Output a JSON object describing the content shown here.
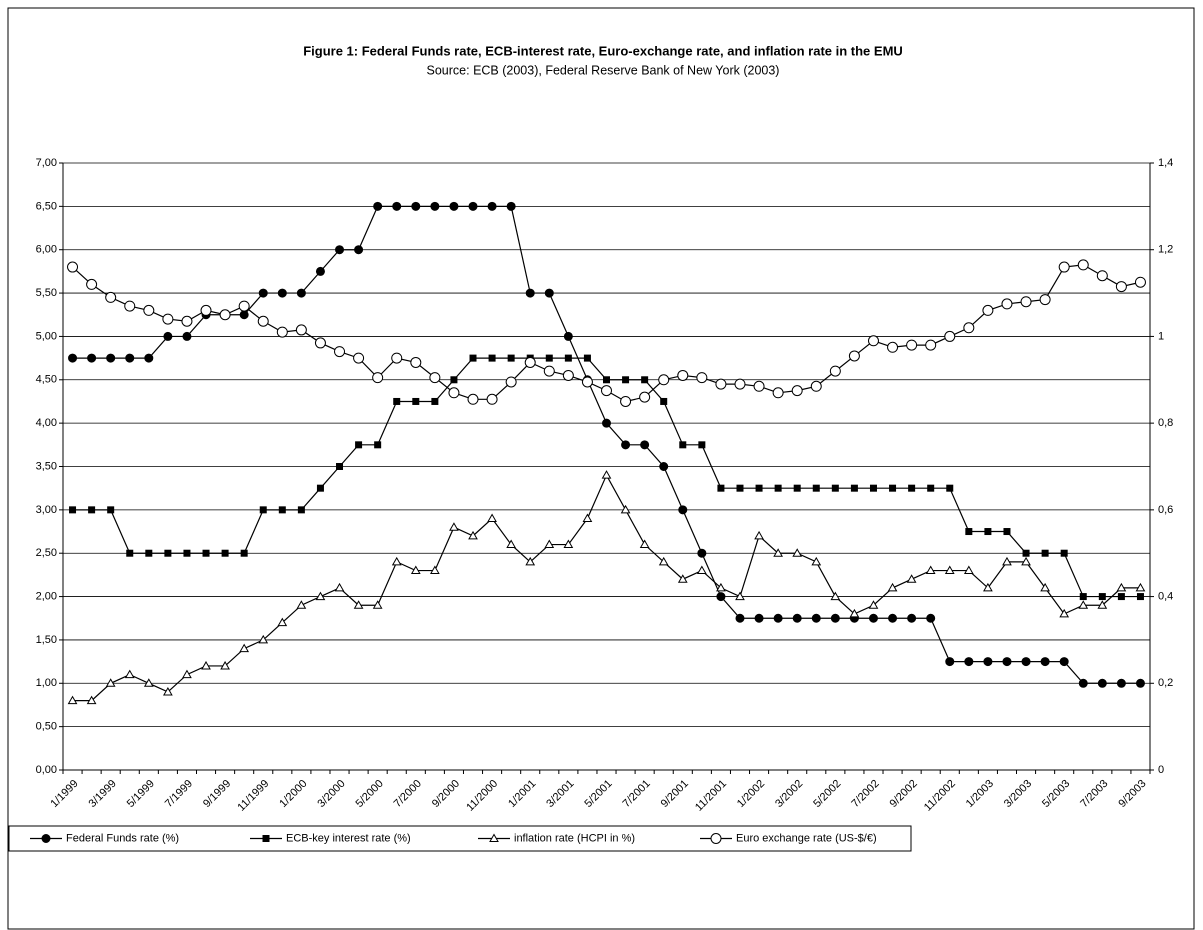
{
  "chart_data": {
    "type": "line",
    "title": "Figure 1: Federal Funds rate, ECB-interest rate, Euro-exchange rate, and inflation rate in the EMU",
    "subtitle": "Source: ECB (2003), Federal Reserve Bank of New York (2003)",
    "categories": [
      "1/1999",
      null,
      "3/1999",
      null,
      "5/1999",
      null,
      "7/1999",
      null,
      "9/1999",
      null,
      "11/1999",
      null,
      "1/2000",
      null,
      "3/2000",
      null,
      "5/2000",
      null,
      "7/2000",
      null,
      "9/2000",
      null,
      "11/2000",
      null,
      "1/2001",
      null,
      "3/2001",
      null,
      "5/2001",
      null,
      "7/2001",
      null,
      "9/2001",
      null,
      "11/2001",
      null,
      "1/2002",
      null,
      "3/2002",
      null,
      "5/2002",
      null,
      "7/2002",
      null,
      "9/2002",
      null,
      "11/2002",
      null,
      "1/2003",
      null,
      "3/2003",
      null,
      "5/2003",
      null,
      "7/2003",
      null,
      "9/2003"
    ],
    "series": [
      {
        "name": "Federal Funds rate (%)",
        "color": "#000000",
        "marker": "filled-circle",
        "values": [
          4.75,
          4.75,
          4.75,
          4.75,
          4.75,
          5.0,
          5.0,
          5.25,
          5.25,
          5.25,
          5.5,
          5.5,
          5.5,
          5.75,
          6.0,
          6.0,
          6.5,
          6.5,
          6.5,
          6.5,
          6.5,
          6.5,
          6.5,
          6.5,
          5.5,
          5.5,
          5.0,
          4.5,
          4.0,
          3.75,
          3.75,
          3.5,
          3.0,
          2.5,
          2.0,
          1.75,
          1.75,
          1.75,
          1.75,
          1.75,
          1.75,
          1.75,
          1.75,
          1.75,
          1.75,
          1.75,
          1.25,
          1.25,
          1.25,
          1.25,
          1.25,
          1.25,
          1.25,
          1.0,
          1.0,
          1.0,
          1.0
        ]
      },
      {
        "name": "ECB-key interest rate (%)",
        "color": "#000000",
        "marker": "filled-square",
        "values": [
          3.0,
          3.0,
          3.0,
          2.5,
          2.5,
          2.5,
          2.5,
          2.5,
          2.5,
          2.5,
          3.0,
          3.0,
          3.0,
          3.25,
          3.5,
          3.75,
          3.75,
          4.25,
          4.25,
          4.25,
          4.5,
          4.75,
          4.75,
          4.75,
          4.75,
          4.75,
          4.75,
          4.75,
          4.5,
          4.5,
          4.5,
          4.25,
          3.75,
          3.75,
          3.25,
          3.25,
          3.25,
          3.25,
          3.25,
          3.25,
          3.25,
          3.25,
          3.25,
          3.25,
          3.25,
          3.25,
          3.25,
          2.75,
          2.75,
          2.75,
          2.5,
          2.5,
          2.5,
          2.0,
          2.0,
          2.0,
          2.0
        ]
      },
      {
        "name": "inflation rate (HCPI in %)",
        "color": "#000000",
        "marker": "open-triangle",
        "values": [
          0.8,
          0.8,
          1.0,
          1.1,
          1.0,
          0.9,
          1.1,
          1.2,
          1.2,
          1.4,
          1.5,
          1.7,
          1.9,
          2.0,
          2.1,
          1.9,
          1.9,
          2.4,
          2.3,
          2.3,
          2.8,
          2.7,
          2.9,
          2.6,
          2.4,
          2.6,
          2.6,
          2.9,
          3.4,
          3.0,
          2.6,
          2.4,
          2.2,
          2.3,
          2.1,
          2.0,
          2.7,
          2.5,
          2.5,
          2.4,
          2.0,
          1.8,
          1.9,
          2.1,
          2.2,
          2.3,
          2.3,
          2.3,
          2.1,
          2.4,
          2.4,
          2.1,
          1.8,
          1.9,
          1.9,
          2.1,
          2.1
        ]
      },
      {
        "name": "Euro exchange rate (US-$/€)",
        "color": "#000000",
        "marker": "open-circle",
        "axis": "y2",
        "values": [
          1.16,
          1.12,
          1.09,
          1.07,
          1.06,
          1.04,
          1.035,
          1.06,
          1.05,
          1.07,
          1.035,
          1.01,
          1.015,
          0.985,
          0.965,
          0.95,
          0.905,
          0.95,
          0.94,
          0.905,
          0.87,
          0.855,
          0.855,
          0.895,
          0.94,
          0.92,
          0.91,
          0.895,
          0.875,
          0.85,
          0.86,
          0.9,
          0.91,
          0.905,
          0.89,
          0.89,
          0.885,
          0.87,
          0.875,
          0.885,
          0.92,
          0.955,
          0.99,
          0.975,
          0.98,
          0.98,
          1.0,
          1.02,
          1.06,
          1.075,
          1.08,
          1.085,
          1.16,
          1.165,
          1.14,
          1.115,
          1.125
        ]
      }
    ],
    "ylim": [
      0,
      7
    ],
    "yticks": [
      {
        "value": 0,
        "label": "0,00"
      },
      {
        "value": 0.5,
        "label": "0,50"
      },
      {
        "value": 1,
        "label": "1,00"
      },
      {
        "value": 1.5,
        "label": "1,50"
      },
      {
        "value": 2,
        "label": "2,00"
      },
      {
        "value": 2.5,
        "label": "2,50"
      },
      {
        "value": 3,
        "label": "3,00"
      },
      {
        "value": 3.5,
        "label": "3,50"
      },
      {
        "value": 4,
        "label": "4,00"
      },
      {
        "value": 4.5,
        "label": "4,50"
      },
      {
        "value": 5,
        "label": "5,00"
      },
      {
        "value": 5.5,
        "label": "5,50"
      },
      {
        "value": 6,
        "label": "6,00"
      },
      {
        "value": 6.5,
        "label": "6,50"
      },
      {
        "value": 7,
        "label": "7,00"
      }
    ],
    "y2lim": [
      0,
      1.4
    ],
    "y2ticks": [
      0,
      {
        "value": 0.2,
        "label": "0,2"
      },
      {
        "value": 0.4,
        "label": "0,4"
      },
      {
        "value": 0.6,
        "label": "0,6"
      },
      {
        "value": 0.8,
        "label": "0,8"
      },
      1,
      {
        "value": 1.2,
        "label": "1,2"
      },
      {
        "value": 1.4,
        "label": "1,4"
      }
    ],
    "grid": true,
    "legend": "bottom"
  }
}
